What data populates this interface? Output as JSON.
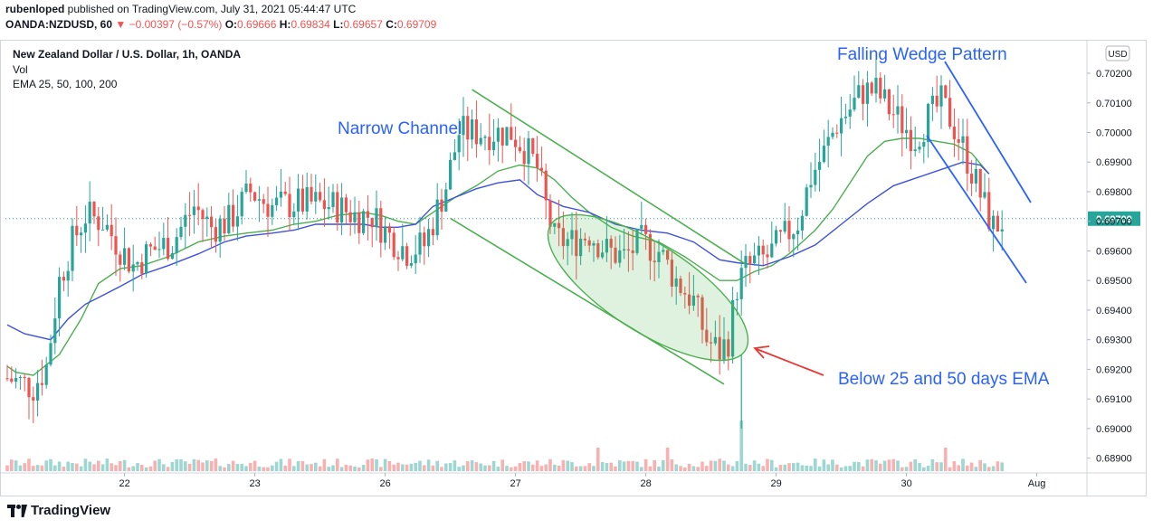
{
  "header": {
    "line1_user": "rubenloped",
    "line1_rest": " published on TradingView.com, July 31, 2021 05:44:47 UTC",
    "symbol": "OANDA:NZDUSD, 60",
    "change_arrow": "▼",
    "change": "−0.00397 (−0.57%)",
    "o_label": "O:",
    "o_val": "0.69666",
    "h_label": "H:",
    "h_val": "0.69834",
    "l_label": "L:",
    "l_val": "0.69657",
    "c_label": "C:",
    "c_val": "0.69709"
  },
  "legend": {
    "title": "New Zealand Dollar / U.S. Dollar, 1h, OANDA",
    "vol": "Vol",
    "ema": "EMA 25, 50, 100, 200"
  },
  "currency_button": "USD",
  "footer": {
    "brand": "TradingView"
  },
  "colors": {
    "up": "#26a69a",
    "down": "#ef5350",
    "ema_green": "#4caf50",
    "ema_blue": "#3f51d8",
    "annotation": "#2962ff",
    "arrow": "#e53935"
  },
  "chart_data": {
    "type": "candlestick",
    "symbol": "NZDUSD",
    "ylim": [
      0.6885,
      0.7031
    ],
    "y_ticks": [
      0.689,
      0.69,
      0.691,
      0.692,
      0.693,
      0.694,
      0.695,
      0.696,
      0.697,
      0.698,
      0.699,
      0.7,
      0.701,
      0.702
    ],
    "y_tick_labels": [
      "0.68900",
      "0.69000",
      "0.69100",
      "0.69200",
      "0.69300",
      "0.69400",
      "0.69500",
      "0.69600",
      "0.69700",
      "0.69800",
      "0.69900",
      "0.70000",
      "0.70100",
      "0.70200"
    ],
    "x_labels": [
      "22",
      "23",
      "26",
      "27",
      "28",
      "29",
      "30",
      "Aug"
    ],
    "last_price": 0.69709,
    "last_price_label": "0.69709",
    "ema_fast": [
      [
        0,
        0.6921
      ],
      [
        2,
        0.6919
      ],
      [
        6,
        0.6918
      ],
      [
        12,
        0.6925
      ],
      [
        17,
        0.6937
      ],
      [
        21,
        0.6949
      ],
      [
        26,
        0.6954
      ],
      [
        31,
        0.6955
      ],
      [
        37,
        0.6958
      ],
      [
        44,
        0.6963
      ],
      [
        50,
        0.6965
      ],
      [
        55,
        0.6966
      ],
      [
        61,
        0.6967
      ],
      [
        66,
        0.6969
      ],
      [
        71,
        0.697
      ],
      [
        76,
        0.6972
      ],
      [
        82,
        0.6973
      ],
      [
        86,
        0.6972
      ],
      [
        90,
        0.697
      ],
      [
        94,
        0.6969
      ],
      [
        98,
        0.6973
      ],
      [
        103,
        0.6978
      ],
      [
        108,
        0.6982
      ],
      [
        113,
        0.6987
      ],
      [
        118,
        0.6989
      ],
      [
        122,
        0.6988
      ],
      [
        126,
        0.6984
      ],
      [
        130,
        0.6978
      ],
      [
        134,
        0.6973
      ],
      [
        139,
        0.6968
      ],
      [
        144,
        0.6965
      ],
      [
        150,
        0.6963
      ],
      [
        156,
        0.6958
      ],
      [
        160,
        0.6954
      ],
      [
        164,
        0.695
      ],
      [
        168,
        0.695
      ],
      [
        172,
        0.6953
      ],
      [
        176,
        0.6955
      ],
      [
        180,
        0.6959
      ],
      [
        186,
        0.6967
      ],
      [
        190,
        0.6974
      ],
      [
        194,
        0.6983
      ],
      [
        198,
        0.6992
      ],
      [
        202,
        0.6997
      ],
      [
        206,
        0.6998
      ],
      [
        210,
        0.6998
      ],
      [
        214,
        0.6997
      ],
      [
        218,
        0.6996
      ],
      [
        222,
        0.6993
      ],
      [
        226,
        0.6986
      ]
    ],
    "ema_slow": [
      [
        0,
        0.6935
      ],
      [
        4,
        0.6932
      ],
      [
        10,
        0.693
      ],
      [
        14,
        0.6937
      ],
      [
        18,
        0.6942
      ],
      [
        22,
        0.6945
      ],
      [
        26,
        0.6948
      ],
      [
        31,
        0.6952
      ],
      [
        37,
        0.6955
      ],
      [
        44,
        0.6959
      ],
      [
        50,
        0.6963
      ],
      [
        55,
        0.6965
      ],
      [
        61,
        0.6966
      ],
      [
        66,
        0.6967
      ],
      [
        71,
        0.6969
      ],
      [
        76,
        0.6969
      ],
      [
        82,
        0.6969
      ],
      [
        86,
        0.6968
      ],
      [
        90,
        0.6968
      ],
      [
        94,
        0.6969
      ],
      [
        98,
        0.6975
      ],
      [
        103,
        0.6978
      ],
      [
        108,
        0.6981
      ],
      [
        113,
        0.6983
      ],
      [
        118,
        0.6984
      ],
      [
        122,
        0.6979
      ],
      [
        128,
        0.6975
      ],
      [
        134,
        0.6973
      ],
      [
        140,
        0.6969
      ],
      [
        146,
        0.6967
      ],
      [
        152,
        0.6966
      ],
      [
        158,
        0.6963
      ],
      [
        164,
        0.6957
      ],
      [
        168,
        0.6956
      ],
      [
        174,
        0.6955
      ],
      [
        180,
        0.6958
      ],
      [
        186,
        0.6962
      ],
      [
        192,
        0.6969
      ],
      [
        198,
        0.6976
      ],
      [
        204,
        0.6982
      ],
      [
        210,
        0.6985
      ],
      [
        216,
        0.6988
      ],
      [
        220,
        0.699
      ],
      [
        224,
        0.6989
      ],
      [
        226,
        0.6986
      ]
    ],
    "annotations": [
      "Narrow Channel",
      "Falling Wedge Pattern",
      "Below 25 and 50 days EMA"
    ]
  }
}
